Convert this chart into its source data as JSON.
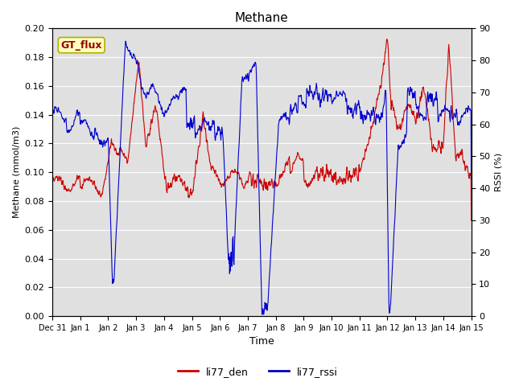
{
  "title": "Methane",
  "xlabel": "Time",
  "ylabel_left": "Methane (mmol/m3)",
  "ylabel_right": "RSSI (%)",
  "ylim_left": [
    0.0,
    0.2
  ],
  "ylim_right": [
    0,
    90
  ],
  "yticks_left": [
    0.0,
    0.02,
    0.04,
    0.06,
    0.08,
    0.1,
    0.12,
    0.14,
    0.16,
    0.18,
    0.2
  ],
  "yticks_right": [
    0,
    10,
    20,
    30,
    40,
    50,
    60,
    70,
    80,
    90
  ],
  "xtick_labels": [
    "Dec 31",
    "Jan 1",
    "Jan 2",
    "Jan 3",
    "Jan 4",
    "Jan 5",
    "Jan 6",
    "Jan 7",
    "Jan 8",
    "Jan 9",
    "Jan 10",
    "Jan 11",
    "Jan 12",
    "Jan 13",
    "Jan 14",
    "Jan 15"
  ],
  "color_den": "#cc0000",
  "color_rssi": "#0000cc",
  "fig_bg_color": "#ffffff",
  "plot_bg_color": "#e0e0e0",
  "legend_label_den": "li77_den",
  "legend_label_rssi": "li77_rssi",
  "annotation_text": "GT_flux",
  "annotation_bg": "#ffffc0",
  "annotation_border": "#b0b000",
  "linewidth": 0.8
}
